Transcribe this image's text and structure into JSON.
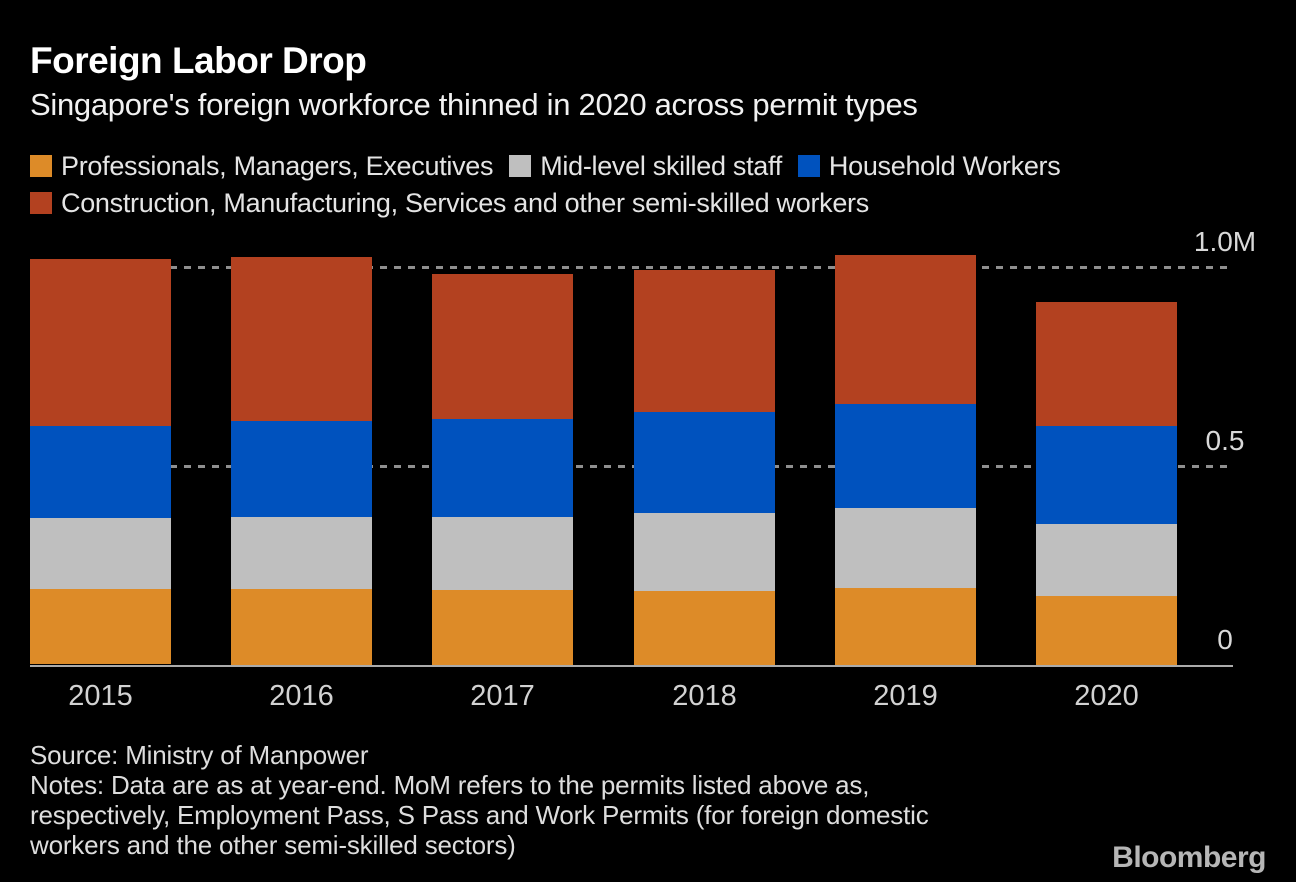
{
  "header": {
    "title": "Foreign Labor Drop",
    "subtitle": "Singapore's foreign workforce thinned in 2020 across permit types"
  },
  "legend": {
    "items": [
      {
        "label": "Professionals, Managers, Executives",
        "color": "#dd8b28"
      },
      {
        "label": "Mid-level skilled staff",
        "color": "#bfbfbf"
      },
      {
        "label": "Household Workers",
        "color": "#0052be"
      },
      {
        "label": "Construction, Manufacturing, Services and other semi-skilled workers",
        "color": "#b34120"
      }
    ]
  },
  "chart_data": {
    "type": "bar",
    "stacked": true,
    "title": "Foreign Labor Drop",
    "subtitle": "Singapore's foreign workforce thinned in 2020 across permit types",
    "unit": "millions of workers",
    "categories": [
      "2015",
      "2016",
      "2017",
      "2018",
      "2019",
      "2020"
    ],
    "series": [
      {
        "name": "Professionals, Managers, Executives",
        "color": "#dd8b28",
        "values": [
          0.188,
          0.192,
          0.188,
          0.186,
          0.194,
          0.174
        ]
      },
      {
        "name": "Mid-level skilled staff",
        "color": "#bfbfbf",
        "values": [
          0.179,
          0.18,
          0.184,
          0.196,
          0.2,
          0.18
        ]
      },
      {
        "name": "Household Workers",
        "color": "#0052be",
        "values": [
          0.232,
          0.24,
          0.247,
          0.254,
          0.262,
          0.247
        ]
      },
      {
        "name": "Construction, Manufacturing, Services and other semi-skilled workers",
        "color": "#b34120",
        "values": [
          0.42,
          0.412,
          0.364,
          0.357,
          0.374,
          0.312
        ]
      }
    ],
    "y_axis": {
      "ticks": [
        {
          "label": "1.0M",
          "value": 1.0
        },
        {
          "label": "0.5",
          "value": 0.5
        },
        {
          "label": "0",
          "value": 0
        }
      ],
      "gridline_values": [
        1.0,
        0.5
      ],
      "range": [
        0,
        1.0
      ]
    },
    "xlabel": "",
    "ylabel": "",
    "grid": "horizontal dashed",
    "legend_position": "top"
  },
  "footer": {
    "source": "Source: Ministry of Manpower",
    "notes_lines": [
      "Notes: Data are as at year-end. MoM refers to the permits listed above as,",
      "respectively, Employment Pass, S Pass and Work Permits (for foreign domestic",
      "workers and the other semi-skilled sectors)"
    ],
    "brand": "Bloomberg"
  }
}
